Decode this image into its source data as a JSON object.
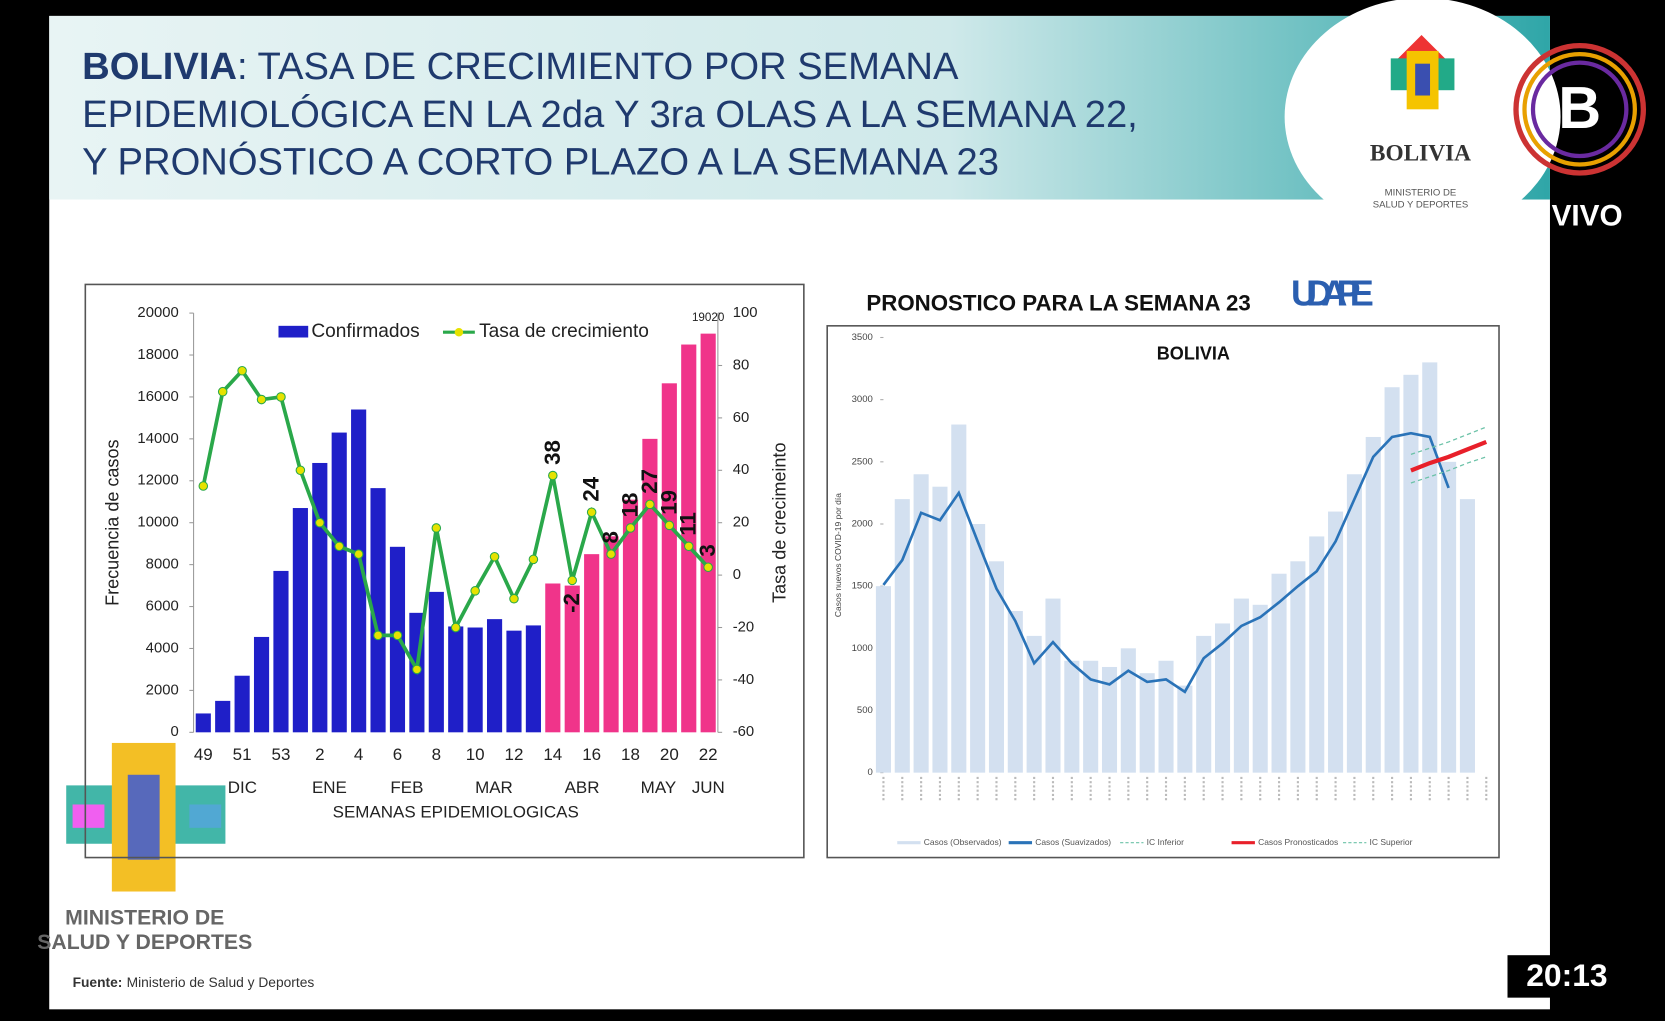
{
  "header": {
    "title_bold": "BOLIVIA",
    "title_rest": ": TASA DE CRECIMIENTO POR SEMANA",
    "title_line2": "EPIDEMIOLÓGICA EN LA 2da Y 3ra OLAS A LA SEMANA 22,",
    "title_line3": "Y PRONÓSTICO A CORTO PLAZO A LA SEMANA 23"
  },
  "logos": {
    "country": "BOLIVIA",
    "ministry_top": "MINISTERIO DE",
    "ministry_bottom": "SALUD Y DEPORTES",
    "udape": "UDAPE",
    "live": "VIVO",
    "clock": "20:13"
  },
  "footer": {
    "ministry_top": "MINISTERIO DE",
    "ministry_bottom": "SALUD Y DEPORTES",
    "source_label": "Fuente:",
    "source": "Ministerio de Salud y Deportes"
  },
  "chart_data": [
    {
      "type": "bar",
      "ylabel": "Frecuencia de casos",
      "y2label": "Tasa de crecimeinto",
      "xlabel": "SEMANAS EPIDEMIOLOGICAS",
      "categories": [
        "49",
        null,
        "51",
        null,
        "53",
        null,
        "2",
        null,
        "4",
        null,
        "6",
        null,
        "8",
        null,
        "10",
        null,
        "12",
        null,
        "14",
        null,
        "16",
        null,
        "18",
        null,
        "20",
        null,
        "22"
      ],
      "month_labels": [
        "DIC",
        "ENE",
        "FEB",
        "MAR",
        "ABR",
        "MAY",
        "JUN"
      ],
      "ylim": [
        0,
        20000
      ],
      "yticks": [
        0,
        2000,
        4000,
        6000,
        8000,
        10000,
        12000,
        14000,
        16000,
        18000,
        20000
      ],
      "y2lim": [
        -60,
        100
      ],
      "y2ticks": [
        -60,
        -40,
        -20,
        0,
        20,
        40,
        60,
        80,
        100
      ],
      "legend": "top",
      "series": [
        {
          "name": "Confirmados",
          "type": "bar",
          "color": "#1f1fc8",
          "colors": [
            "#1f1fc8",
            "#1f1fc8",
            "#1f1fc8",
            "#1f1fc8",
            "#1f1fc8",
            "#1f1fc8",
            "#1f1fc8",
            "#1f1fc8",
            "#1f1fc8",
            "#1f1fc8",
            "#1f1fc8",
            "#1f1fc8",
            "#1f1fc8",
            "#1f1fc8",
            "#1f1fc8",
            "#1f1fc8",
            "#1f1fc8",
            "#1f1fc8",
            "#f0348a",
            "#f0348a",
            "#f0348a",
            "#f0348a",
            "#f0348a",
            "#f0348a",
            "#f0348a",
            "#f0348a",
            "#f0348a"
          ],
          "values": [
            900,
            1500,
            2700,
            4550,
            7700,
            10700,
            12850,
            14300,
            15400,
            11650,
            8850,
            5700,
            6700,
            5050,
            5000,
            5400,
            4850,
            5100,
            7100,
            7000,
            8500,
            9350,
            11100,
            14000,
            16650,
            18500,
            19020
          ],
          "value_labels": [
            null,
            null,
            null,
            null,
            null,
            null,
            null,
            null,
            null,
            null,
            null,
            null,
            null,
            null,
            null,
            null,
            null,
            null,
            null,
            null,
            null,
            null,
            null,
            null,
            null,
            null,
            "19020"
          ]
        },
        {
          "name": "Tasa de crecimiento",
          "type": "line",
          "axis": "y2",
          "color": "#2aa84a",
          "marker_color": "#e6e200",
          "values": [
            34,
            70,
            78,
            67,
            68,
            40,
            20,
            11,
            8,
            -23,
            -23,
            -36,
            18,
            -20,
            -6,
            7,
            -9,
            6,
            38,
            -2,
            24,
            8,
            18,
            27,
            19,
            11,
            3
          ],
          "value_labels": [
            null,
            null,
            null,
            null,
            null,
            null,
            null,
            null,
            null,
            null,
            null,
            null,
            null,
            null,
            null,
            null,
            null,
            null,
            "38",
            "-2",
            "24",
            "8",
            "18",
            "27",
            "19",
            "11",
            "3"
          ]
        }
      ]
    },
    {
      "type": "line",
      "title": "PRONOSTICO PARA LA SEMANA 23",
      "subtitle": "BOLIVIA",
      "ylabel": "Casos nuevos COVID-19 por día",
      "categories": [
        null,
        null,
        null,
        null,
        null,
        null,
        null,
        null,
        null,
        null,
        null,
        null,
        null,
        null,
        null,
        null,
        null,
        null,
        null,
        null,
        null,
        null,
        null,
        null,
        null,
        null,
        null,
        null,
        null,
        null,
        null,
        null,
        null
      ],
      "ylim": [
        0,
        3500
      ],
      "yticks": [
        0,
        500,
        1000,
        1500,
        2000,
        2500,
        3000,
        3500
      ],
      "legend": "bottom",
      "series": [
        {
          "name": "Casos (Observados)",
          "type": "bar",
          "color": "#d3e0f0",
          "values": [
            1500,
            2200,
            2400,
            2300,
            2800,
            2000,
            1700,
            1300,
            1100,
            1400,
            900,
            900,
            850,
            1000,
            800,
            900,
            700,
            1100,
            1200,
            1400,
            1350,
            1600,
            1700,
            1900,
            2100,
            2400,
            2700,
            3100,
            3200,
            3300,
            2500,
            2200,
            null
          ]
        },
        {
          "name": "Casos (Suavizados)",
          "type": "line",
          "color": "#2a73b8",
          "values": [
            1510,
            1710,
            2090,
            2030,
            2250,
            1860,
            1480,
            1220,
            880,
            1050,
            880,
            750,
            710,
            820,
            730,
            750,
            650,
            920,
            1040,
            1180,
            1250,
            1370,
            1500,
            1620,
            1860,
            2200,
            2540,
            2700,
            2730,
            2700,
            2290,
            null,
            null
          ]
        },
        {
          "name": "IC Inferior",
          "type": "line",
          "dash": true,
          "color": "#6cc2a8",
          "values": [
            null,
            null,
            null,
            null,
            null,
            null,
            null,
            null,
            null,
            null,
            null,
            null,
            null,
            null,
            null,
            null,
            null,
            null,
            null,
            null,
            null,
            null,
            null,
            null,
            null,
            null,
            null,
            null,
            2330,
            2380,
            2430,
            2490,
            2540
          ]
        },
        {
          "name": "Casos Pronosticados",
          "type": "line",
          "color": "#e8202a",
          "values": [
            null,
            null,
            null,
            null,
            null,
            null,
            null,
            null,
            null,
            null,
            null,
            null,
            null,
            null,
            null,
            null,
            null,
            null,
            null,
            null,
            null,
            null,
            null,
            null,
            null,
            null,
            null,
            null,
            2430,
            2490,
            2540,
            2600,
            2660
          ]
        },
        {
          "name": "IC Superior",
          "type": "line",
          "dash": true,
          "color": "#6cc2a8",
          "values": [
            null,
            null,
            null,
            null,
            null,
            null,
            null,
            null,
            null,
            null,
            null,
            null,
            null,
            null,
            null,
            null,
            null,
            null,
            null,
            null,
            null,
            null,
            null,
            null,
            null,
            null,
            null,
            null,
            2560,
            2610,
            2660,
            2720,
            2780
          ]
        }
      ]
    }
  ]
}
